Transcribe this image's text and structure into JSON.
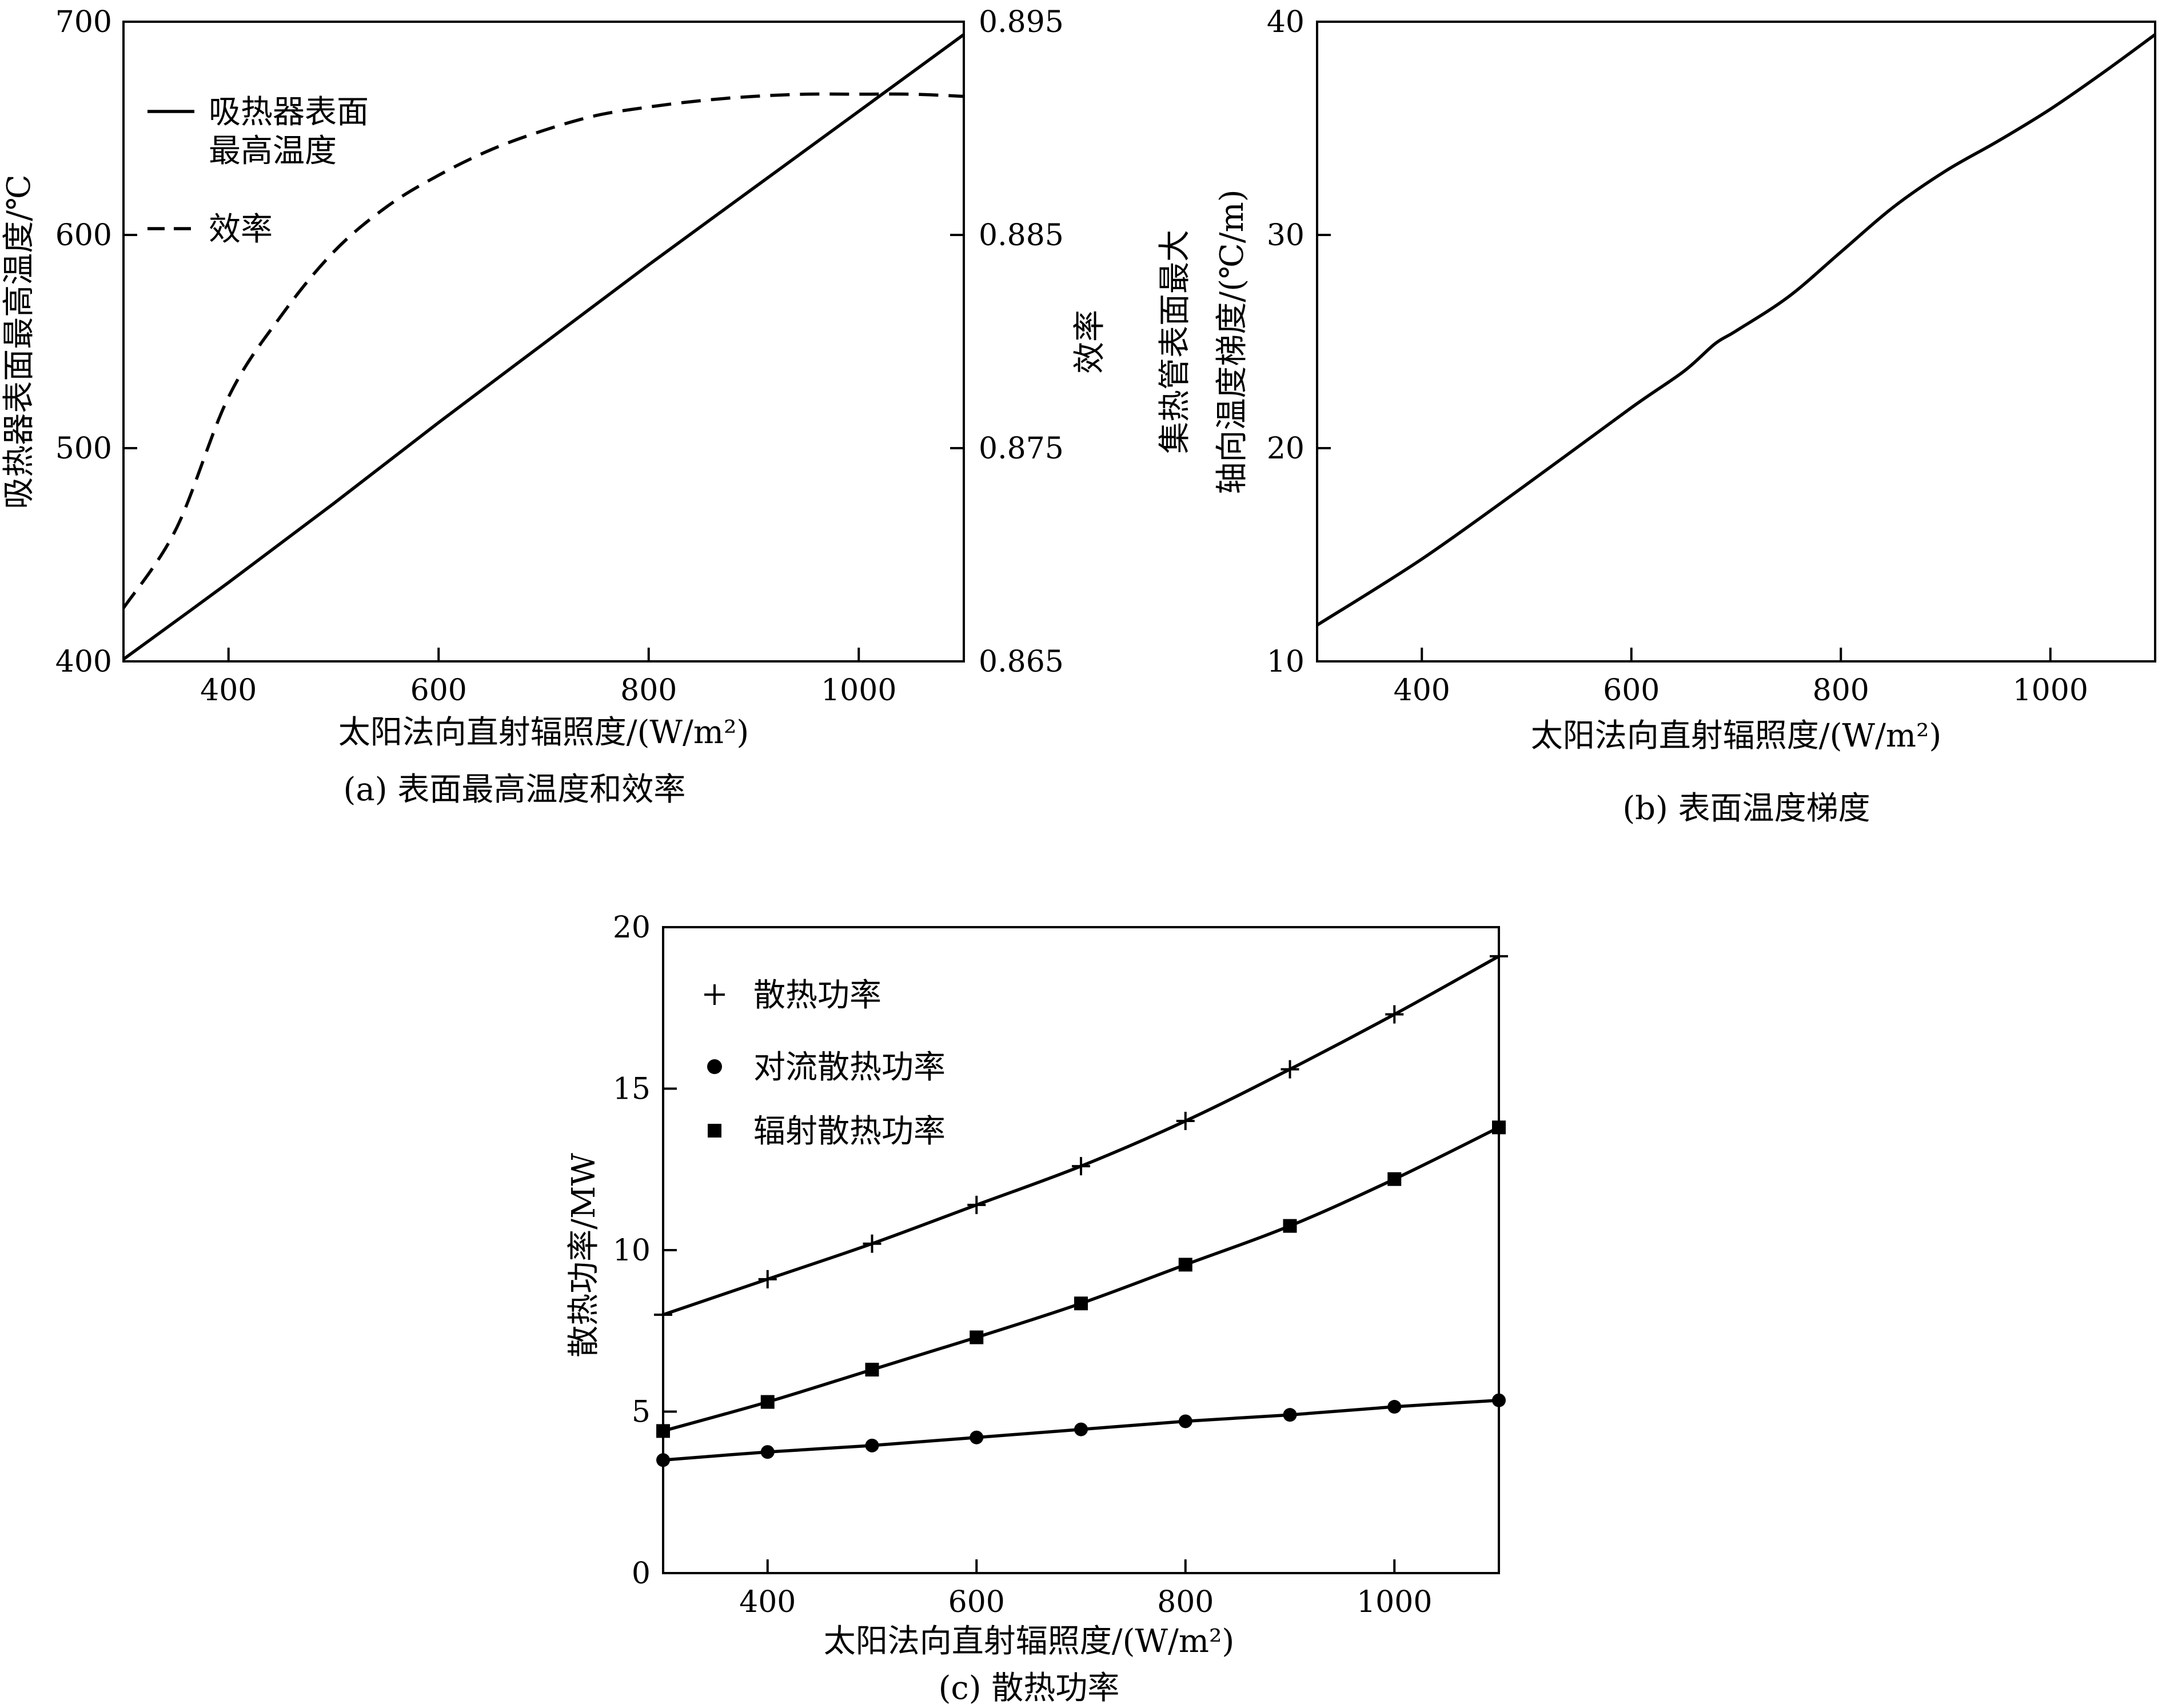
{
  "charts": {
    "a": {
      "caption": "(a) 表面最高温度和效率",
      "xlabel": "太阳法向直射辐照度/(W/m²)",
      "ylabel_left": "吸热器表面最高温度/℃",
      "ylabel_right": "效率",
      "legend": [
        "吸热器表面",
        "最高温度",
        "效率"
      ],
      "x_ticks": [
        "400",
        "600",
        "800",
        "1000"
      ],
      "y_ticks_left": [
        "400",
        "500",
        "600",
        "700"
      ],
      "y_ticks_right": [
        "0.865",
        "0.875",
        "0.885",
        "0.895"
      ]
    },
    "b": {
      "caption": "(b) 表面温度梯度",
      "xlabel": "太阳法向直射辐照度/(W/m²)",
      "ylabel_line1": "集热管表面最大",
      "ylabel_line2": "轴向温度梯度/(℃/m)",
      "x_ticks": [
        "400",
        "600",
        "800",
        "1000"
      ],
      "y_ticks": [
        "10",
        "20",
        "30",
        "40"
      ]
    },
    "c": {
      "caption": "(c) 散热功率",
      "xlabel": "太阳法向直射辐照度/(W/m²)",
      "ylabel": "散热功率/MW",
      "legend": [
        "散热功率",
        "对流散热功率",
        "辐射散热功率"
      ],
      "x_ticks": [
        "400",
        "600",
        "800",
        "1000"
      ],
      "y_ticks": [
        "0",
        "5",
        "10",
        "15",
        "20"
      ]
    }
  },
  "chart_data": [
    {
      "id": "a",
      "type": "line",
      "xlim": [
        300,
        1100
      ],
      "ylim_left": [
        400,
        700
      ],
      "ylim_right": [
        0.865,
        0.895
      ],
      "legend_position": "top-left",
      "grid": false,
      "series": [
        {
          "name": "吸热器表面最高温度",
          "axis": "left",
          "style": "solid",
          "x": [
            300,
            400,
            500,
            600,
            700,
            800,
            900,
            1000,
            1100
          ],
          "y": [
            401,
            437,
            474,
            512,
            549,
            586,
            622,
            658,
            694
          ]
        },
        {
          "name": "效率",
          "axis": "right",
          "style": "dashed",
          "x": [
            300,
            350,
            400,
            450,
            500,
            550,
            600,
            650,
            700,
            750,
            800,
            850,
            900,
            950,
            1000,
            1050,
            1100
          ],
          "y": [
            0.8675,
            0.8712,
            0.8774,
            0.8812,
            0.8842,
            0.8863,
            0.8878,
            0.889,
            0.8899,
            0.8906,
            0.891,
            0.8913,
            0.8915,
            0.8916,
            0.8916,
            0.8916,
            0.8915
          ]
        }
      ]
    },
    {
      "id": "b",
      "type": "line",
      "xlim": [
        300,
        1100
      ],
      "ylim": [
        10,
        40
      ],
      "grid": false,
      "series": [
        {
          "x": [
            300,
            400,
            500,
            600,
            650,
            680,
            700,
            750,
            800,
            850,
            900,
            950,
            1000,
            1050,
            1100
          ],
          "y": [
            11.7,
            14.8,
            18.3,
            21.9,
            23.6,
            24.9,
            25.5,
            27.1,
            29.2,
            31.3,
            33.0,
            34.4,
            35.9,
            37.6,
            39.4
          ]
        }
      ]
    },
    {
      "id": "c",
      "type": "line",
      "xlim": [
        300,
        1100
      ],
      "ylim": [
        0,
        20
      ],
      "legend_position": "top-left",
      "grid": false,
      "series": [
        {
          "name": "散热功率",
          "marker": "plus",
          "x": [
            300,
            400,
            500,
            600,
            700,
            800,
            900,
            1000,
            1100
          ],
          "y": [
            8.0,
            9.1,
            10.2,
            11.4,
            12.6,
            14.0,
            15.6,
            17.3,
            19.1
          ]
        },
        {
          "name": "对流散热功率",
          "marker": "circle",
          "x": [
            300,
            400,
            500,
            600,
            700,
            800,
            900,
            1000,
            1100
          ],
          "y": [
            3.5,
            3.75,
            3.95,
            4.2,
            4.45,
            4.7,
            4.9,
            5.15,
            5.35
          ]
        },
        {
          "name": "辐射散热功率",
          "marker": "square",
          "x": [
            300,
            400,
            500,
            600,
            700,
            800,
            900,
            1000,
            1100
          ],
          "y": [
            4.4,
            5.3,
            6.3,
            7.3,
            8.35,
            9.55,
            10.75,
            12.2,
            13.8
          ]
        }
      ]
    }
  ]
}
